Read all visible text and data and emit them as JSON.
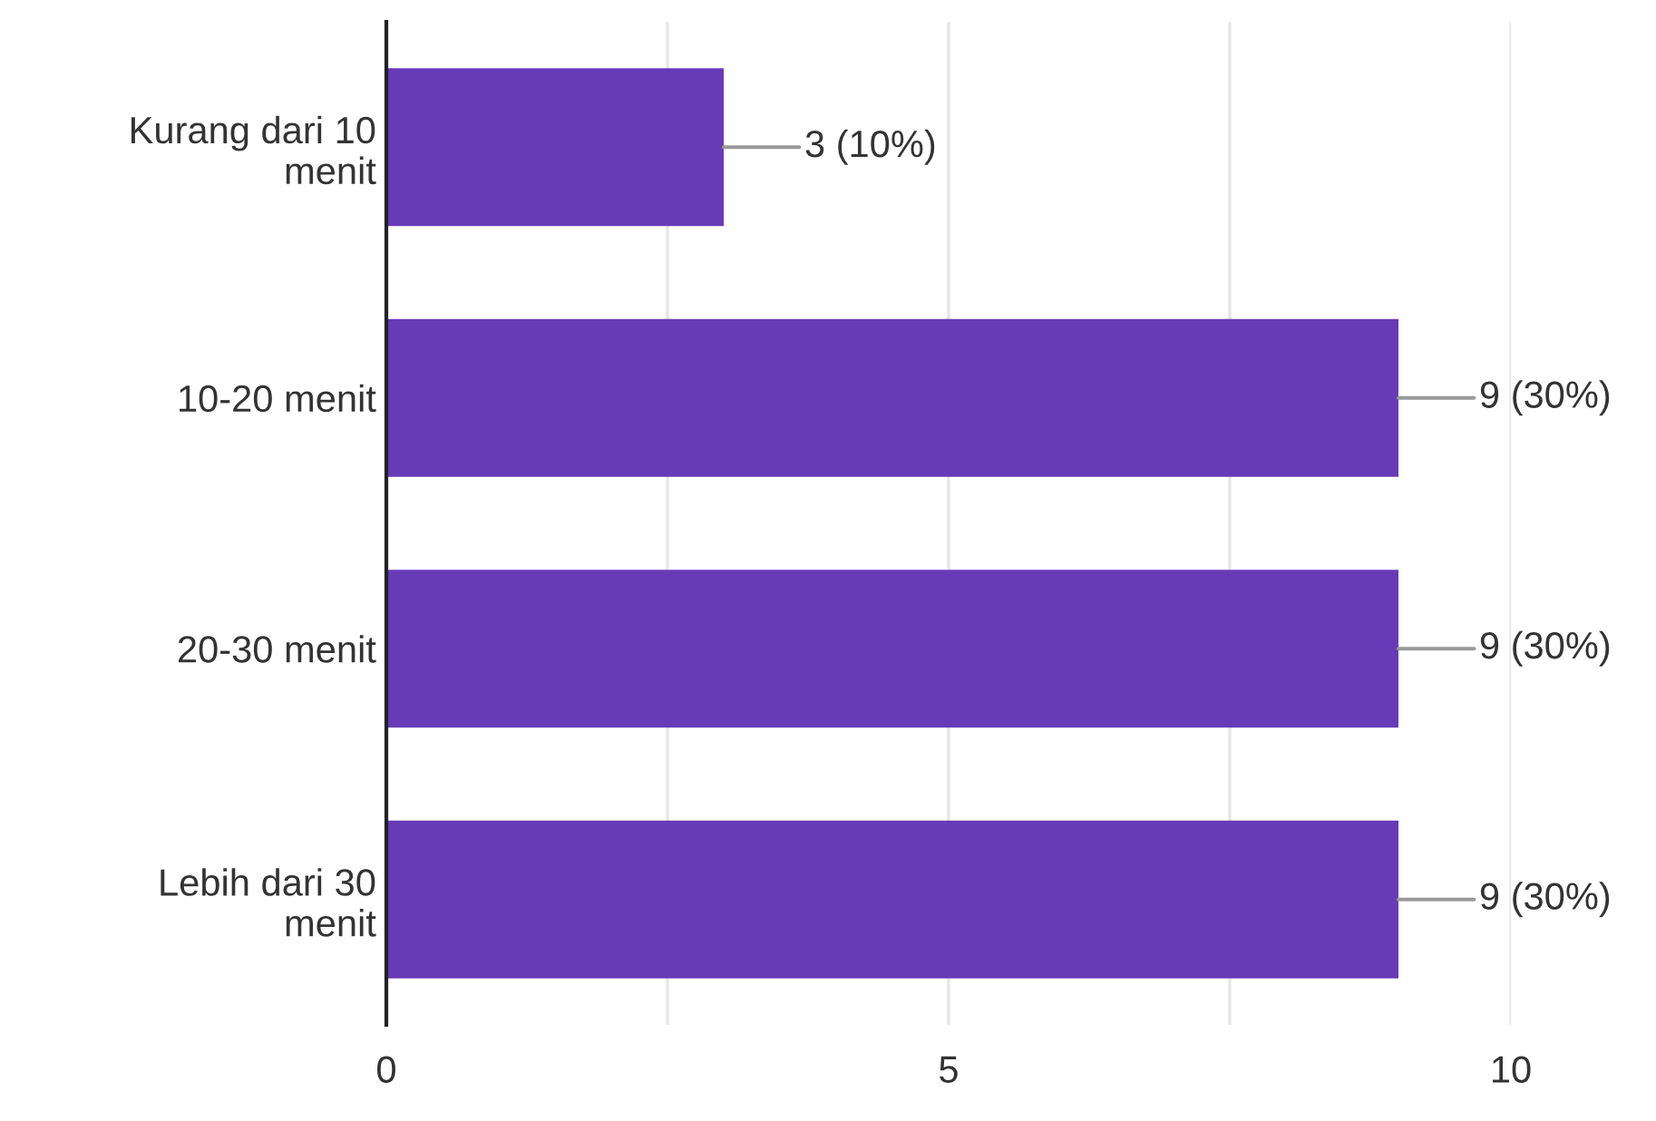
{
  "chart_data": {
    "type": "bar",
    "orientation": "horizontal",
    "categories": [
      "Kurang dari 10\nmenit",
      "10-20 menit",
      "20-30 menit",
      "Lebih dari 30\nmenit"
    ],
    "values": [
      3,
      9,
      9,
      9
    ],
    "value_labels": [
      "3 (10%)",
      "9 (30%)",
      "9 (30%)",
      "9 (30%)"
    ],
    "color": "#673ab7",
    "xlim": [
      0,
      10
    ],
    "xticks": [
      0,
      {
        "value": 2.5,
        "label": null
      },
      5,
      {
        "value": 7.5,
        "label": null
      },
      10
    ],
    "grid": "x"
  }
}
